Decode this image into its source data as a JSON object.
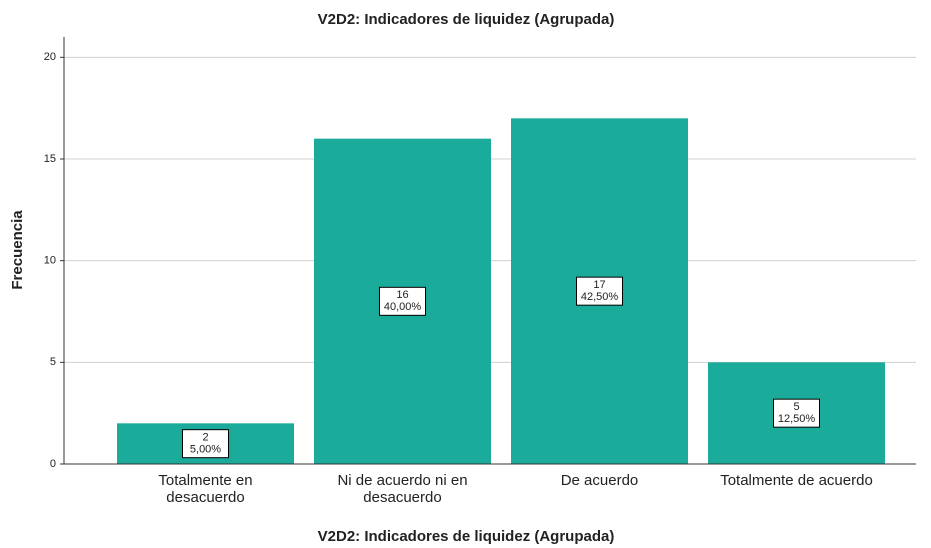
{
  "chart_data": {
    "type": "bar",
    "title": "V2D2: Indicadores de liquidez (Agrupada)",
    "x_label": "V2D2: Indicadores de liquidez (Agrupada)",
    "y_label": "Frecuencia",
    "categories": [
      "Totalmente en desacuerdo",
      "Ni de acuerdo ni en desacuerdo",
      "De acuerdo",
      "Totalmente de acuerdo"
    ],
    "values": [
      2,
      16,
      17,
      5
    ],
    "percent_labels": [
      "5,00%",
      "40,00%",
      "42,50%",
      "12,50%"
    ],
    "color": "#1aab9b",
    "ylim": [
      0,
      21
    ],
    "yticks": [
      0,
      5,
      10,
      15,
      20
    ],
    "grid": true
  }
}
